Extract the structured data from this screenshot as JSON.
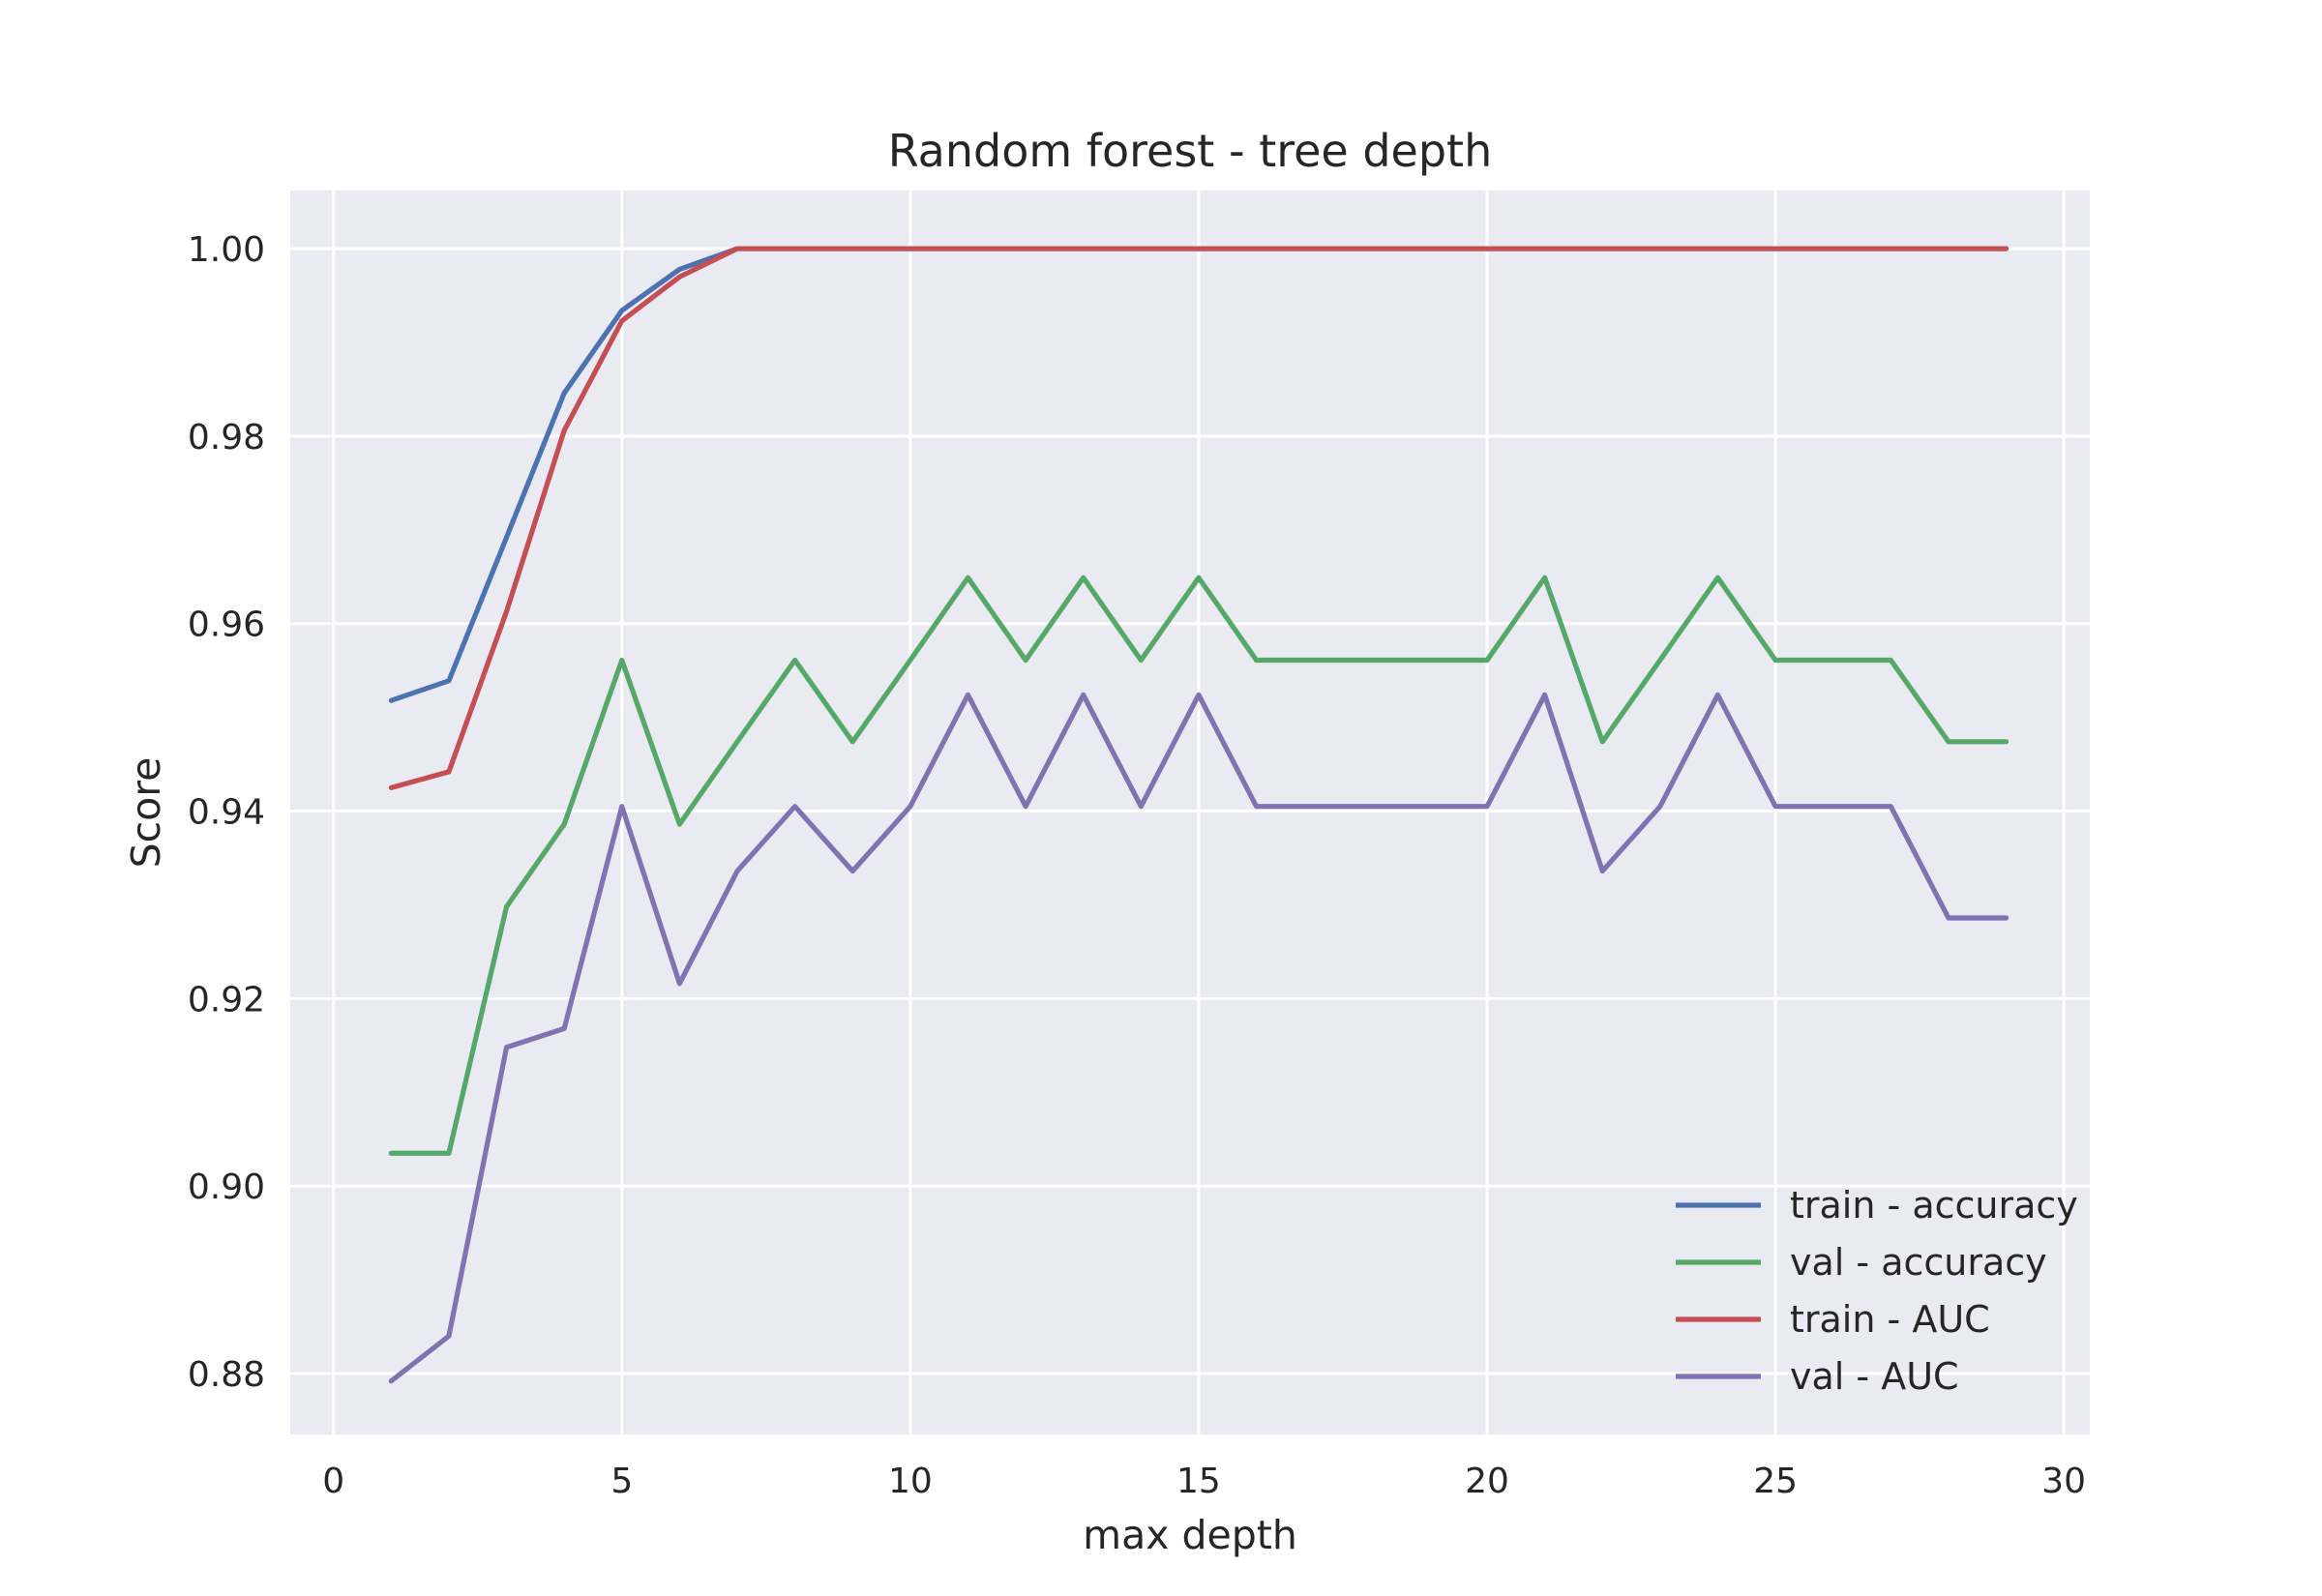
{
  "colors": {
    "background": "#eaeaf2",
    "grid": "#ffffff"
  },
  "chart_data": {
    "type": "line",
    "title": "Random forest - tree depth",
    "xlabel": "max depth",
    "ylabel": "Score",
    "xlim": [
      -0.75,
      30.45
    ],
    "ylim": [
      0.8735,
      1.0062
    ],
    "xticks": [
      0,
      5,
      10,
      15,
      20,
      25,
      30
    ],
    "xtick_labels": [
      "0",
      "5",
      "10",
      "15",
      "20",
      "25",
      "30"
    ],
    "yticks": [
      0.88,
      0.9,
      0.92,
      0.94,
      0.96,
      0.98,
      1.0
    ],
    "ytick_labels": [
      "0.88",
      "0.90",
      "0.92",
      "0.94",
      "0.96",
      "0.98",
      "1.00"
    ],
    "grid": true,
    "legend_position": "lower-right",
    "x": [
      1,
      2,
      3,
      4,
      5,
      6,
      7,
      8,
      9,
      10,
      11,
      12,
      13,
      14,
      15,
      16,
      17,
      18,
      19,
      20,
      21,
      22,
      23,
      24,
      25,
      26,
      27,
      28,
      29
    ],
    "series": [
      {
        "name": "train - accuracy",
        "color": "#4c72b0",
        "values": [
          0.9518,
          0.9539,
          0.9692,
          0.9846,
          0.9934,
          0.9978,
          1,
          1,
          1,
          1,
          1,
          1,
          1,
          1,
          1,
          1,
          1,
          1,
          1,
          1,
          1,
          1,
          1,
          1,
          1,
          1,
          1,
          1,
          1
        ]
      },
      {
        "name": "val - accuracy",
        "color": "#55a868",
        "values": [
          0.9035,
          0.9035,
          0.9298,
          0.9386,
          0.9561,
          0.9386,
          0.9474,
          0.9561,
          0.9474,
          0.9561,
          0.9649,
          0.9561,
          0.9649,
          0.9561,
          0.9649,
          0.9561,
          0.9561,
          0.9561,
          0.9561,
          0.9561,
          0.9649,
          0.9474,
          0.9561,
          0.9649,
          0.9561,
          0.9561,
          0.9561,
          0.9474,
          0.9474
        ]
      },
      {
        "name": "train - AUC",
        "color": "#c44e52",
        "values": [
          0.9425,
          0.9442,
          0.9613,
          0.9806,
          0.9923,
          0.997,
          1,
          1,
          1,
          1,
          1,
          1,
          1,
          1,
          1,
          1,
          1,
          1,
          1,
          1,
          1,
          1,
          1,
          1,
          1,
          1,
          1,
          1,
          1
        ]
      },
      {
        "name": "val - AUC",
        "color": "#8172b2",
        "values": [
          0.8792,
          0.884,
          0.9148,
          0.9168,
          0.9405,
          0.9216,
          0.9336,
          0.9405,
          0.9336,
          0.9405,
          0.9524,
          0.9405,
          0.9524,
          0.9405,
          0.9524,
          0.9405,
          0.9405,
          0.9405,
          0.9405,
          0.9405,
          0.9524,
          0.9336,
          0.9405,
          0.9524,
          0.9405,
          0.9405,
          0.9405,
          0.9286,
          0.9286
        ]
      }
    ]
  }
}
